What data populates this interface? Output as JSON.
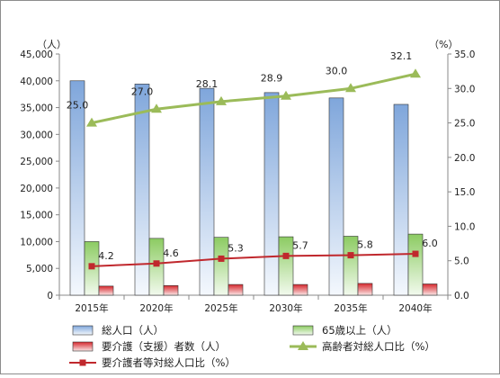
{
  "chart_data": {
    "type": "bar",
    "categories": [
      "2015年",
      "2020年",
      "2025年",
      "2030年",
      "2035年",
      "2040年"
    ],
    "y_left": {
      "unit": "（人）",
      "lim": [
        0,
        45000
      ],
      "ticks": [
        "0",
        "5,000",
        "10,000",
        "15,000",
        "20,000",
        "25,000",
        "30,000",
        "35,000",
        "40,000",
        "45,000"
      ]
    },
    "y_right": {
      "unit": "（%）",
      "lim": [
        0,
        35
      ],
      "ticks": [
        "0.0",
        "5.0",
        "10.0",
        "15.0",
        "20.0",
        "25.0",
        "30.0",
        "35.0"
      ]
    },
    "series": [
      {
        "name": "総人口（人）",
        "type": "bar",
        "axis": "left",
        "color": "#8EB4E3",
        "values": [
          40000,
          39400,
          38600,
          37800,
          36800,
          35600
        ]
      },
      {
        "name": "65歳以上（人）",
        "type": "bar",
        "axis": "left",
        "color": "#9BD37C",
        "values": [
          10000,
          10600,
          10800,
          10900,
          11000,
          11400
        ]
      },
      {
        "name": "要介護（支援）者数（人）",
        "type": "bar",
        "axis": "left",
        "color": "#E24A4A",
        "values": [
          1700,
          1800,
          2000,
          2000,
          2200,
          2100
        ]
      },
      {
        "name": "高齢者対総人口比（%）",
        "type": "line",
        "axis": "right",
        "color": "#9BBB59",
        "values": [
          25.0,
          27.0,
          28.1,
          28.9,
          30.0,
          32.1
        ],
        "labels": [
          "25.0",
          "27.0",
          "28.1",
          "28.9",
          "30.0",
          "32.1"
        ]
      },
      {
        "name": "要介護者等対総人口比（%）",
        "type": "line",
        "axis": "right",
        "color": "#C0282D",
        "values": [
          4.2,
          4.6,
          5.3,
          5.7,
          5.8,
          6.0
        ],
        "labels": [
          "4.2",
          "4.6",
          "5.3",
          "5.7",
          "5.8",
          "6.0"
        ]
      }
    ],
    "grid": false,
    "legend_position": "bottom"
  }
}
